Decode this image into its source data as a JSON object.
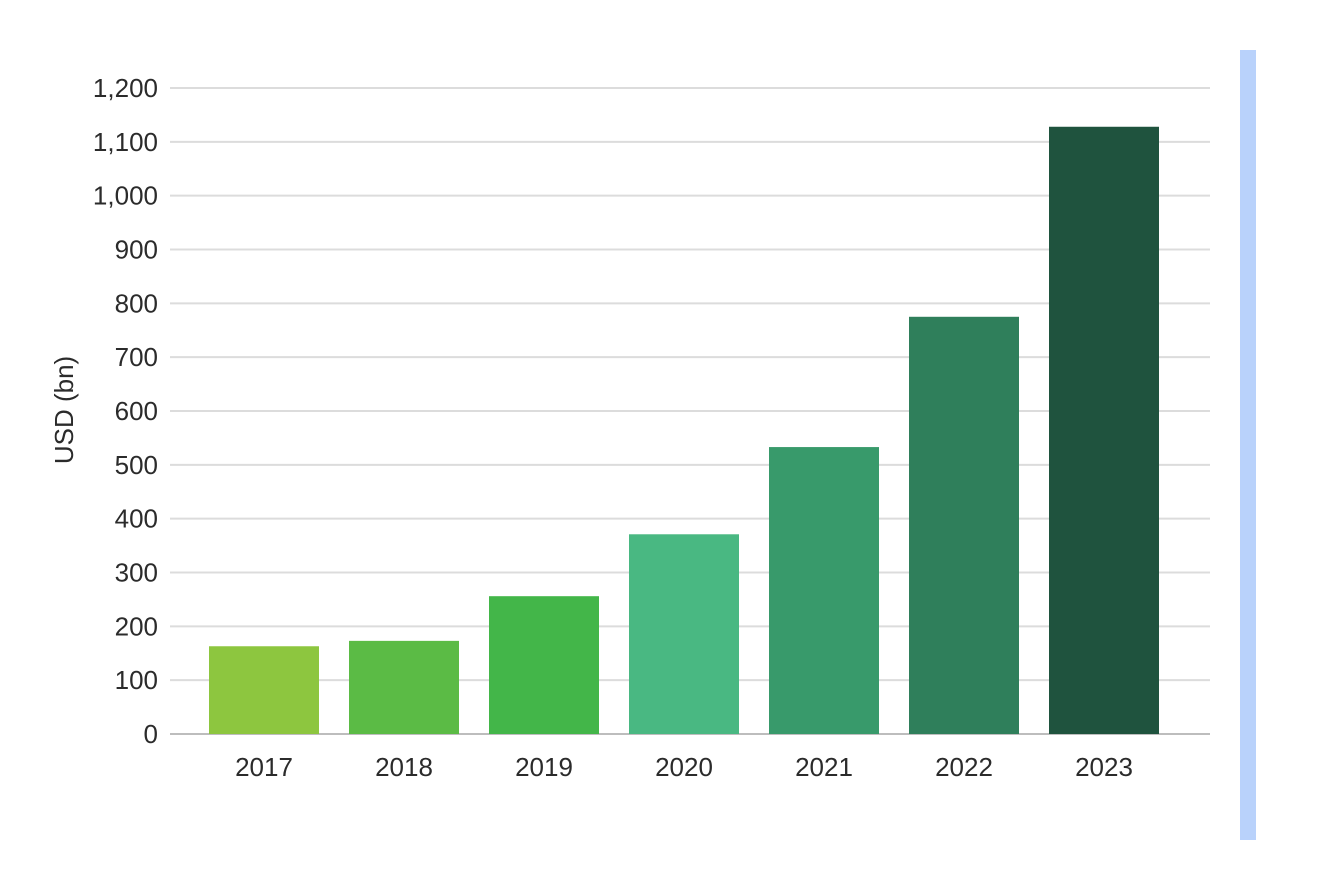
{
  "chart_data": {
    "type": "bar",
    "categories": [
      "2017",
      "2018",
      "2019",
      "2020",
      "2021",
      "2022",
      "2023"
    ],
    "values": [
      163,
      173,
      256,
      371,
      533,
      775,
      1128
    ],
    "colors": [
      "#8dc63f",
      "#5bbb45",
      "#43b649",
      "#49b882",
      "#389a6b",
      "#2f7f5b",
      "#1f533e"
    ],
    "title": "",
    "xlabel": "",
    "ylabel": "USD (bn)",
    "ylim": [
      0,
      1200
    ],
    "yticks": [
      0,
      100,
      200,
      300,
      400,
      500,
      600,
      700,
      800,
      900,
      1000,
      1100,
      1200
    ],
    "ytick_labels": [
      "0",
      "100",
      "200",
      "300",
      "400",
      "500",
      "600",
      "700",
      "800",
      "900",
      "1,000",
      "1,100",
      "1,200"
    ],
    "grid": true,
    "legend": "none"
  },
  "side_panel": {
    "color": "#b9d2fb"
  }
}
